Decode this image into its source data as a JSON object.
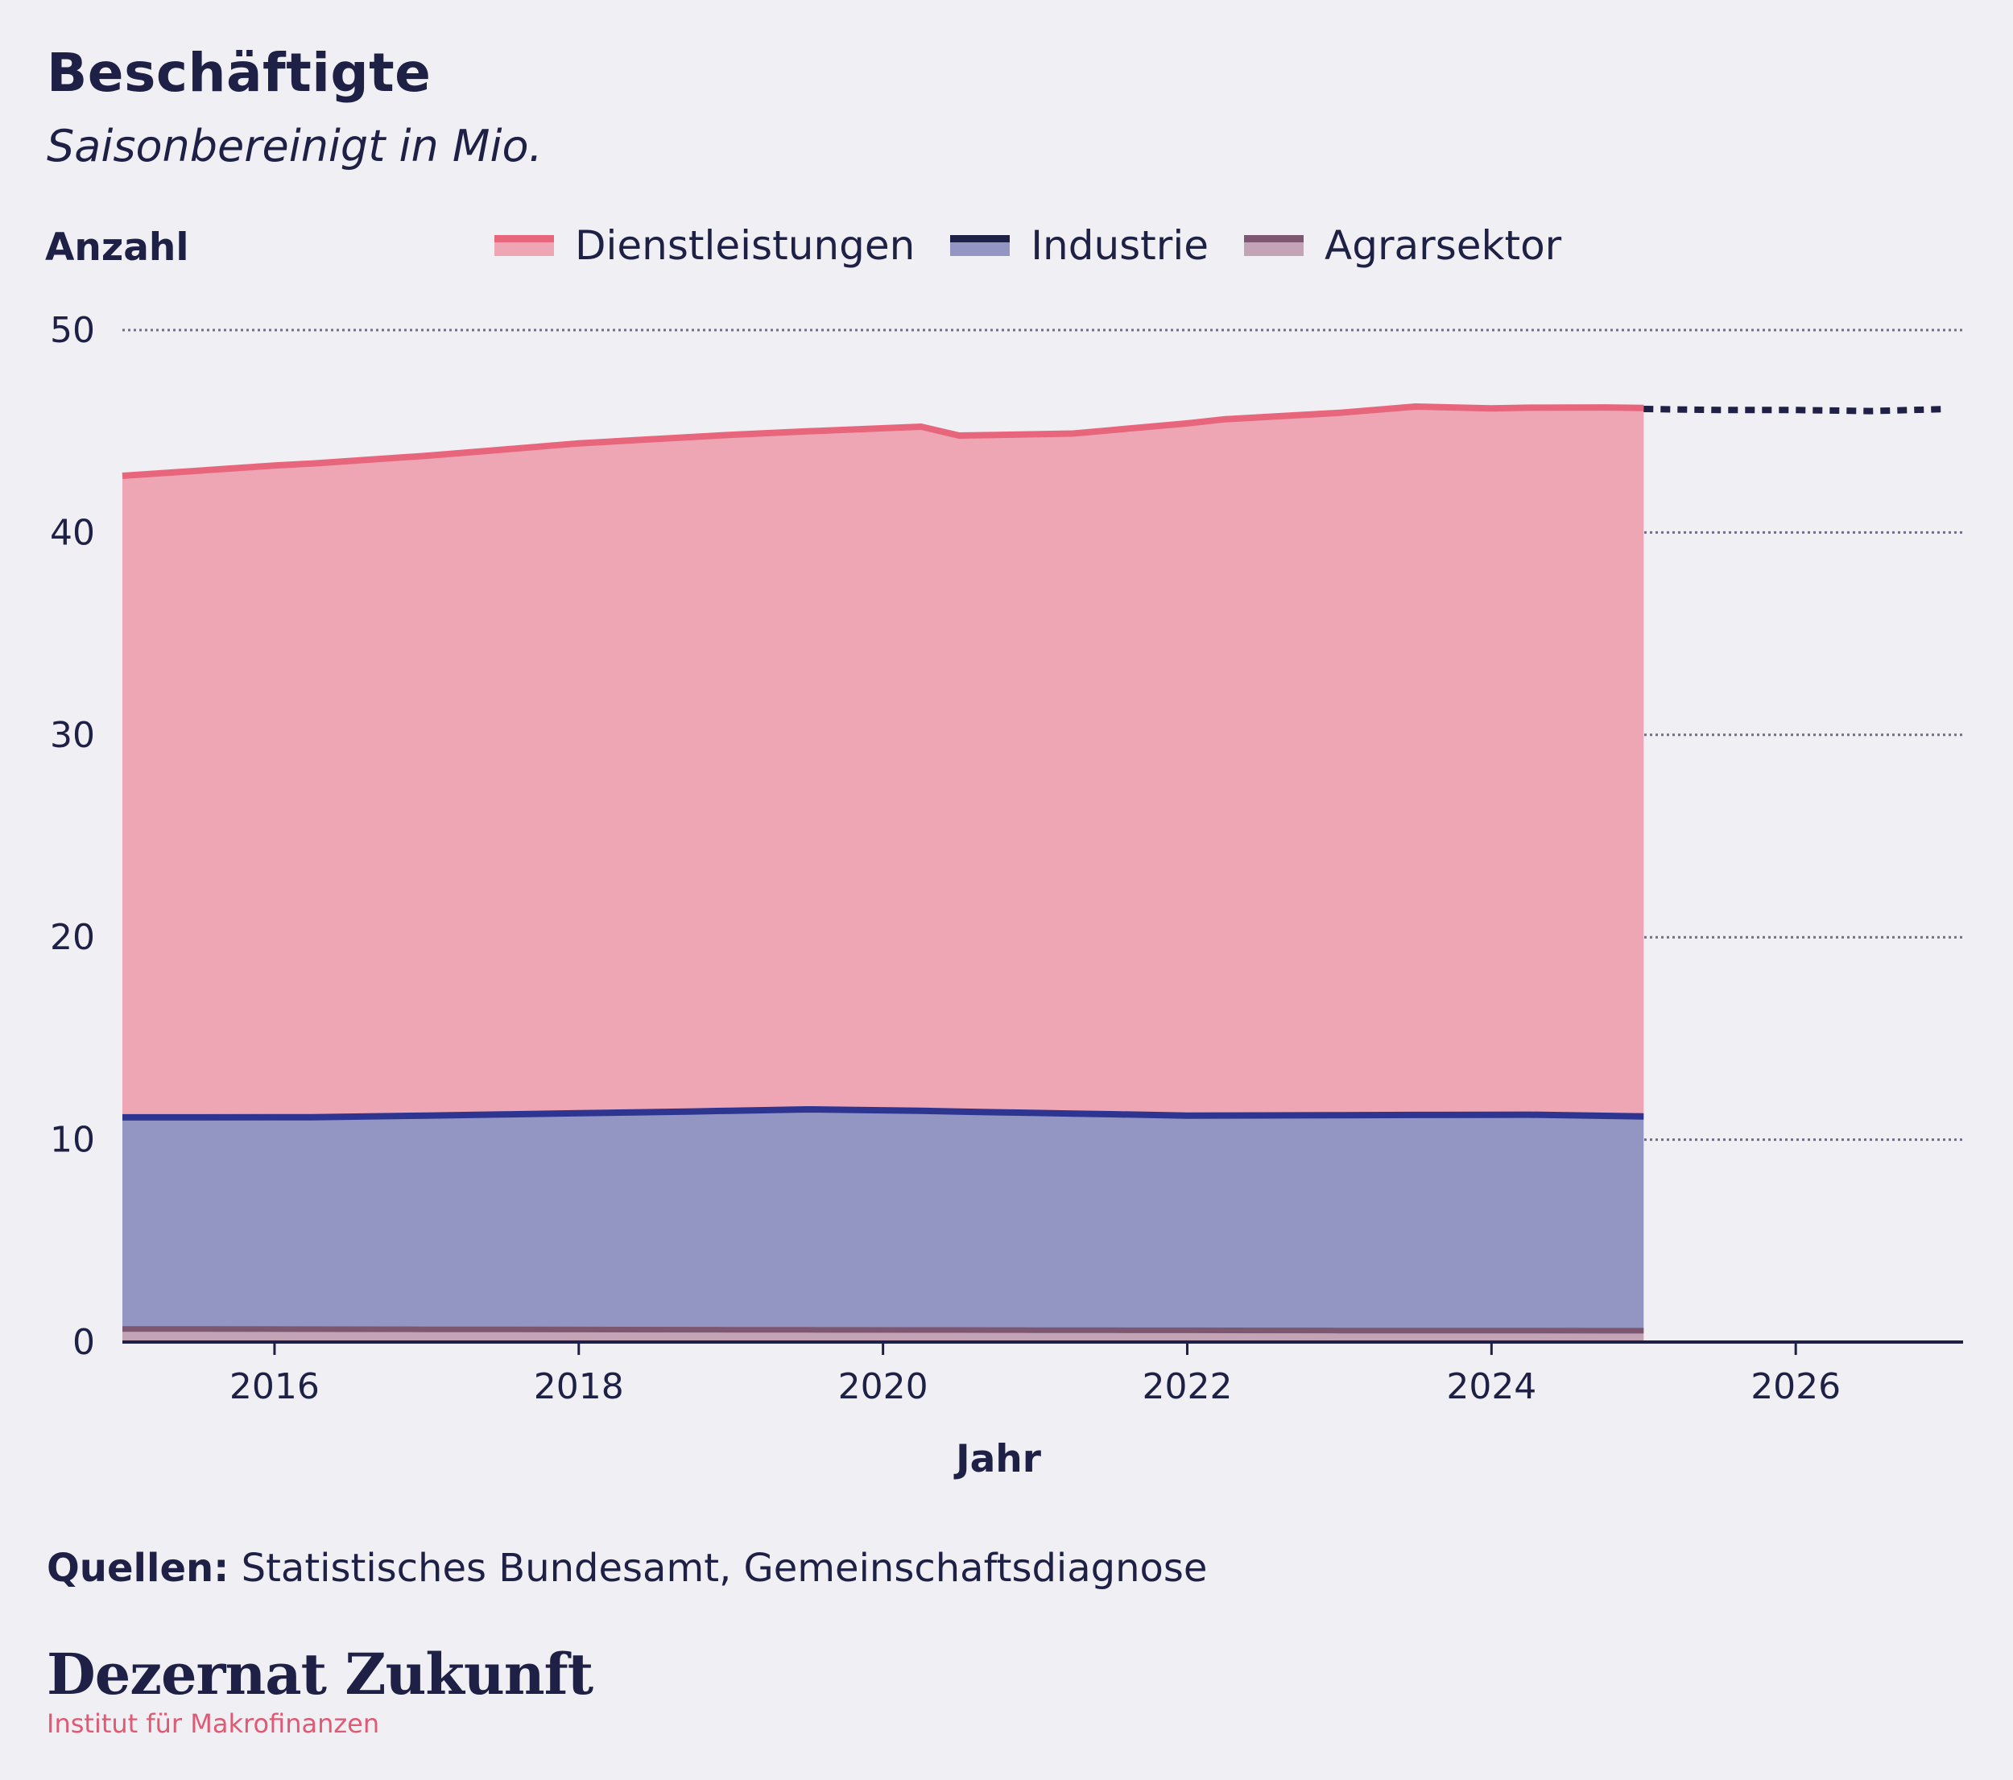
{
  "header": {
    "title": "Beschäftigte",
    "subtitle": "Saisonbereinigt in Mio."
  },
  "footer": {
    "source_label": "Quellen:",
    "source_text": "Statistisches Bundesamt, Gemeinschaftsdiagnose",
    "logo": "Dezernat Zukunft",
    "logo_subtitle": "Institut für Makrofinanzen"
  },
  "colors": {
    "dienstleistungen_line": "#e8667c",
    "dienstleistungen_fill": "#eea6b4",
    "industrie_line": "#2d3590",
    "industrie_fill": "#9396c2",
    "industrie_legend_line": "#1e2046",
    "agrar_line": "#7d5670",
    "agrar_fill": "#c2a4b6",
    "forecast_line": "#1e2046",
    "grid": "#6e6e84",
    "text": "#1e2046",
    "background": "#f0eff4"
  },
  "chart_data": {
    "type": "area",
    "stacked": true,
    "ylabel": "Anzahl",
    "xlabel": "Jahr",
    "xlim": [
      2015.0,
      2027.1
    ],
    "ylim": [
      0,
      50
    ],
    "xticks": [
      "2016",
      "2018",
      "2020",
      "2022",
      "2024",
      "2026"
    ],
    "yticks": [
      "0",
      "10",
      "20",
      "30",
      "40",
      "50"
    ],
    "grid": "horizontal dotted",
    "legend_position": "top",
    "series": [
      {
        "name": "Agrarsektor",
        "x": [
          2015.0,
          2017.0,
          2019.0,
          2021.0,
          2023.0,
          2025.0
        ],
        "values": [
          0.65,
          0.63,
          0.61,
          0.59,
          0.57,
          0.56
        ]
      },
      {
        "name": "Industrie",
        "x": [
          2015.0,
          2016.25,
          2017.5,
          2018.75,
          2019.5,
          2020.25,
          2020.75,
          2021.5,
          2022.0,
          2023.0,
          2024.25,
          2025.0
        ],
        "values": [
          10.45,
          10.47,
          10.62,
          10.78,
          10.89,
          10.83,
          10.76,
          10.67,
          10.61,
          10.64,
          10.67,
          10.59
        ]
      },
      {
        "name": "Dienstleistungen",
        "x": [
          2015.0,
          2016.0,
          2017.0,
          2018.0,
          2019.0,
          2019.5,
          2020.25,
          2020.5,
          2021.25,
          2021.5,
          2022.25,
          2023.0,
          2023.5,
          2024.0,
          2024.75,
          2025.0
        ],
        "values": [
          31.7,
          32.2,
          32.6,
          33.1,
          33.4,
          33.5,
          33.8,
          33.4,
          33.6,
          33.8,
          34.4,
          34.7,
          35.0,
          34.9,
          35.0,
          35.0
        ]
      }
    ],
    "forecast_total": {
      "x": [
        2025.0,
        2025.5,
        2026.0,
        2026.5,
        2027.0
      ],
      "values": [
        46.1,
        46.05,
        46.05,
        46.0,
        46.1
      ]
    }
  }
}
